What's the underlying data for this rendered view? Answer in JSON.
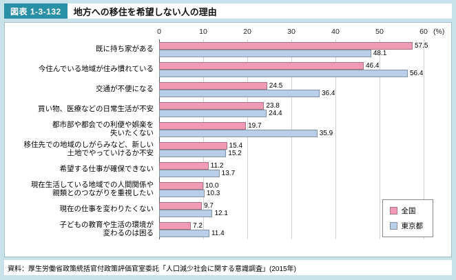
{
  "page": {
    "figure_label": "図表 1-3-132",
    "title": "地方への移住を希望しない人の理由",
    "source": "資料：厚生労働省政策統括官付政策評価官室委託「人口減少社会に関する意識調査」(2015年)"
  },
  "colors": {
    "page_background": "#c8e2e9",
    "badge_teal": "#2a90a5",
    "series_zenkoku_pink": "#f09ab5",
    "series_tokyo_blue": "#b9cfe9"
  },
  "chart_data": {
    "type": "bar",
    "orientation": "horizontal",
    "title": "地方への移住を希望しない人の理由",
    "x_axis": {
      "ticks": [
        0,
        10,
        20,
        30,
        40,
        50,
        60
      ],
      "unit_label": "(%)",
      "min": 0,
      "max": 60,
      "gridlines": true
    },
    "categories": [
      "既に持ち家がある",
      "今住んでいる地域が住み慣れている",
      "交通が不便になる",
      "買い物、医療などの日常生活が不安",
      "都市部や都会での利便や娯楽を\n失いたくない",
      "移住先での地域のしがらみなど、新しい\n土地でやっていけるか不安",
      "希望する仕事が確保できない",
      "現在生活している地域での人間関係や\n親類とのつながりを重視したい",
      "現在の仕事を変わりたくない",
      "子どもの教育や生活の環境が\n変わるのは困る"
    ],
    "series": [
      {
        "name": "全国",
        "color": "#f09ab5",
        "values": [
          57.5,
          46.4,
          24.5,
          23.8,
          19.7,
          15.4,
          11.2,
          10.0,
          9.7,
          7.2
        ]
      },
      {
        "name": "東京都",
        "color": "#b9cfe9",
        "values": [
          48.1,
          56.4,
          36.4,
          24.4,
          35.9,
          15.2,
          13.7,
          10.3,
          12.1,
          11.4
        ]
      }
    ],
    "legend": {
      "position": "bottom-right",
      "entries": [
        "全国",
        "東京都"
      ]
    }
  }
}
